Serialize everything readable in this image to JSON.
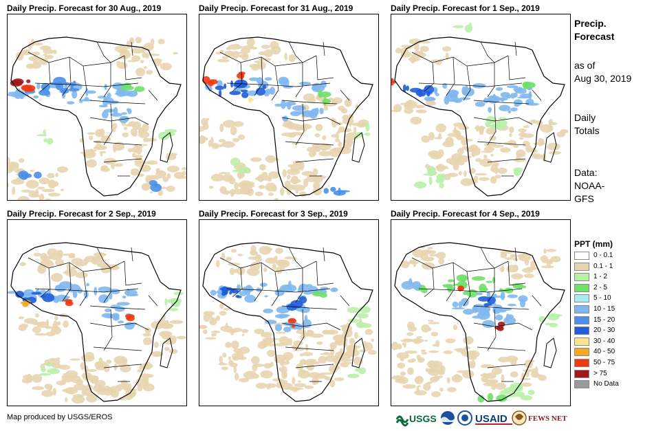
{
  "panels": [
    {
      "title": "Daily Precip. Forecast for 30 Aug., 2019"
    },
    {
      "title": "Daily Precip. Forecast for 31 Aug., 2019"
    },
    {
      "title": "Daily Precip. Forecast for 1 Sep., 2019"
    },
    {
      "title": "Daily Precip. Forecast for 2 Sep., 2019"
    },
    {
      "title": "Daily Precip. Forecast for 3 Sep., 2019"
    },
    {
      "title": "Daily Precip. Forecast for 4 Sep., 2019"
    }
  ],
  "sidebar": {
    "title_line1": "Precip.",
    "title_line2": "Forecast",
    "asof_line1": "as of",
    "asof_line2": "Aug 30, 2019",
    "totals_line1": "Daily",
    "totals_line2": "Totals",
    "data_line1": "Data:",
    "data_line2": "NOAA-",
    "data_line3": "GFS"
  },
  "legend": {
    "title": "PPT (mm)",
    "items": [
      {
        "label": "0 - 0.1",
        "color": "#ffffff"
      },
      {
        "label": "0.1 - 1",
        "color": "#e8d5b0"
      },
      {
        "label": "1 - 2",
        "color": "#b9f0a8"
      },
      {
        "label": "2 - 5",
        "color": "#6fe06a"
      },
      {
        "label": "5 - 10",
        "color": "#a8ecf0"
      },
      {
        "label": "10 - 15",
        "color": "#7fb8ee"
      },
      {
        "label": "15 - 20",
        "color": "#4a8fe8"
      },
      {
        "label": "20 - 30",
        "color": "#1f5ed8"
      },
      {
        "label": "30 - 40",
        "color": "#fde38a"
      },
      {
        "label": "40 - 50",
        "color": "#f6a81f"
      },
      {
        "label": "50 - 75",
        "color": "#f03a10"
      },
      {
        "label": "> 75",
        "color": "#a01818"
      },
      {
        "label": "No Data",
        "color": "#999999"
      }
    ]
  },
  "footer": {
    "credit": "Map produced by USGS/EROS",
    "logo_usgs": "USGS",
    "logo_usaid": "USAID",
    "logo_fewsnet": "FEWS NET"
  }
}
